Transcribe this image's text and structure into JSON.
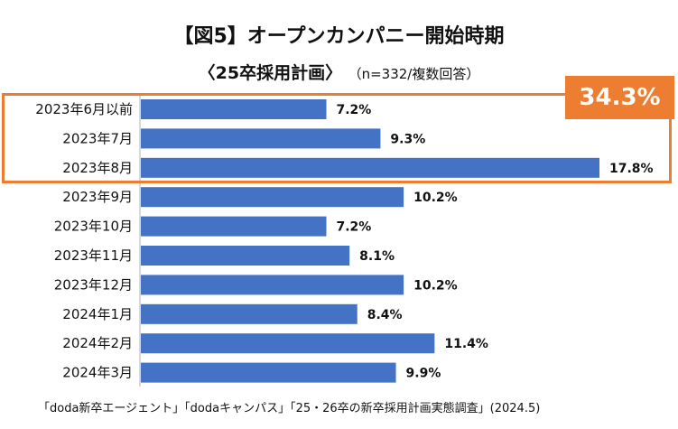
{
  "title": "【図5】オープンカンパニー開始時期",
  "subtitle": "〈25卒採用計画〉",
  "subtitle_note": "（n=332/複数回答）",
  "highlight": {
    "label": "34.3%",
    "color": "#ED7D31"
  },
  "source": "「doda新卒エージェント」「dodaキャンパス」「25・26卒の新卒採用計画実態調査」(2024.5)",
  "bar_color": "#4472C4",
  "chart_data": {
    "type": "bar",
    "orientation": "horizontal",
    "title": "【図5】オープンカンパニー開始時期",
    "categories": [
      "2023年6月以前",
      "2023年7月",
      "2023年8月",
      "2023年9月",
      "2023年10月",
      "2023年11月",
      "2023年12月",
      "2024年1月",
      "2024年2月",
      "2024年3月"
    ],
    "values": [
      7.2,
      9.3,
      17.8,
      10.2,
      7.2,
      8.1,
      10.2,
      8.4,
      11.4,
      9.9
    ],
    "value_labels": [
      "7.2%",
      "9.3%",
      "17.8%",
      "10.2%",
      "7.2%",
      "8.1%",
      "10.2%",
      "8.4%",
      "11.4%",
      "9.9%"
    ],
    "unit": "%",
    "xlim": [
      0,
      20
    ],
    "highlighted_categories": [
      "2023年6月以前",
      "2023年7月",
      "2023年8月"
    ]
  }
}
